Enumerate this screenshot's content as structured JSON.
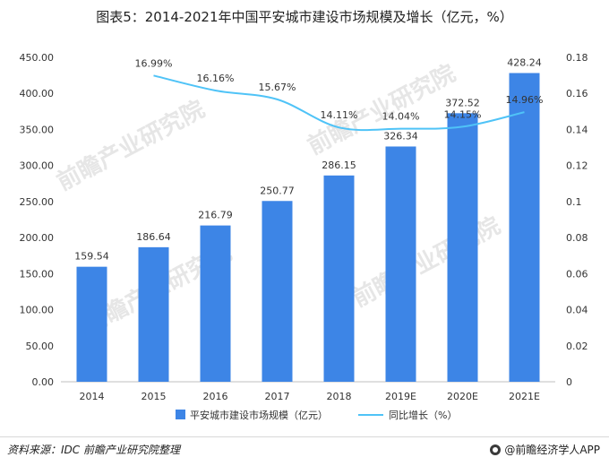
{
  "chart_data": {
    "type": "bar",
    "title": "图表5：2014-2021年中国平安城市建设市场规模及增长（亿元，%）",
    "categories": [
      "2014",
      "2015",
      "2016",
      "2017",
      "2018",
      "2019E",
      "2020E",
      "2021E"
    ],
    "series": [
      {
        "name": "平安城市建设市场规模（亿元）",
        "type": "bar",
        "axis": "left",
        "values": [
          159.54,
          186.64,
          216.79,
          250.77,
          286.15,
          326.34,
          372.52,
          428.24
        ],
        "labels": [
          "159.54",
          "186.64",
          "216.79",
          "250.77",
          "286.15",
          "326.34",
          "372.52",
          "428.24"
        ],
        "color": "#3d85e6"
      },
      {
        "name": "同比增长（%）",
        "type": "line",
        "axis": "right",
        "values": [
          null,
          0.1699,
          0.1616,
          0.1567,
          0.1411,
          0.1404,
          0.1415,
          0.1496
        ],
        "labels": [
          "",
          "16.99%",
          "16.16%",
          "15.67%",
          "14.11%",
          "14.04%",
          "14.15%",
          "14.96%"
        ],
        "color": "#4fc3f7"
      }
    ],
    "y_left": {
      "min": 0,
      "max": 450,
      "step": 50,
      "ticks": [
        "0.00",
        "50.00",
        "100.00",
        "150.00",
        "200.00",
        "250.00",
        "300.00",
        "350.00",
        "400.00",
        "450.00"
      ]
    },
    "y_right": {
      "min": 0,
      "max": 0.18,
      "step": 0.02,
      "ticks": [
        "0",
        "0.02",
        "0.04",
        "0.06",
        "0.08",
        "0.1",
        "0.12",
        "0.14",
        "0.16",
        "0.18"
      ]
    },
    "grid": false,
    "legend": "bottom"
  },
  "watermark": "前瞻产业研究院",
  "footer": {
    "source": "资料来源：IDC  前瞻产业研究院整理",
    "brand": "@前瞻经济学人APP"
  }
}
